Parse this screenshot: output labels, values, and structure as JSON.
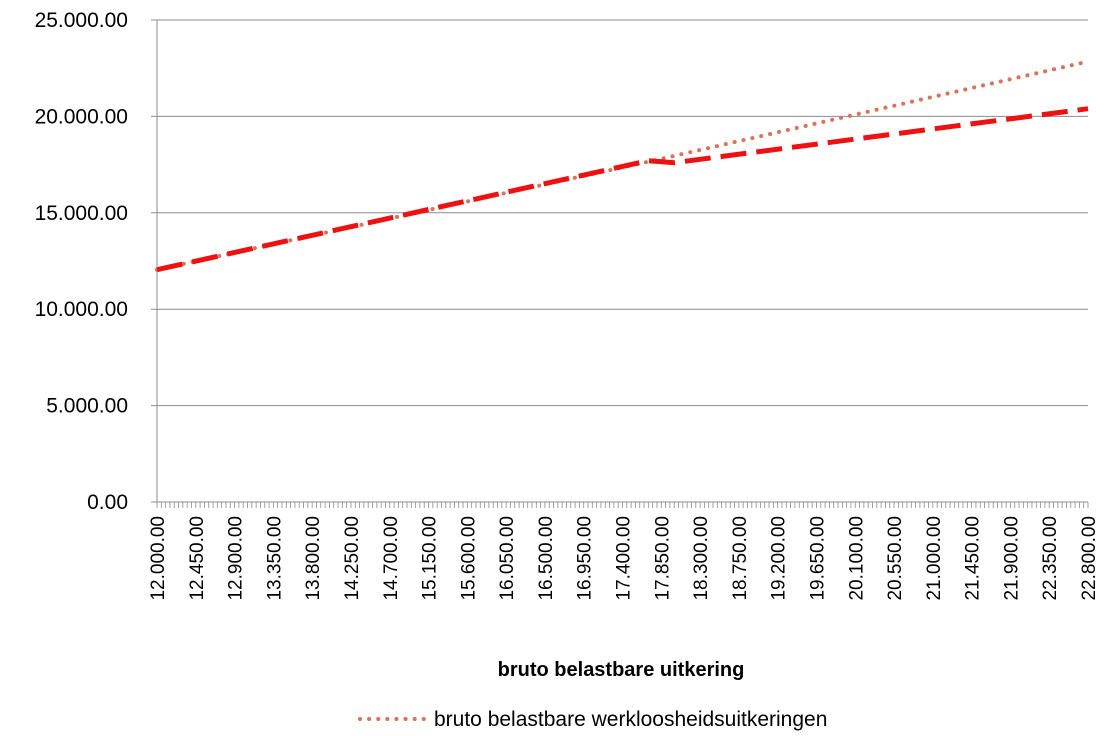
{
  "chart_data": {
    "type": "line",
    "title": "",
    "xlabel": "bruto belastbare uitkering",
    "ylabel": "",
    "x_start": 12000,
    "x_end": 22800,
    "x_step": 50,
    "ylim": [
      0,
      25000
    ],
    "grid": true,
    "legend_position": "bottom",
    "y_ticks": [
      "0.00",
      "5.000.00",
      "10.000.00",
      "15.000.00",
      "20.000.00",
      "25.000.00"
    ],
    "x_tick_labels": [
      "12.000.00",
      "12.450.00",
      "12.900.00",
      "13.350.00",
      "13.800.00",
      "14.250.00",
      "14.700.00",
      "15.150.00",
      "15.600.00",
      "16.050.00",
      "16.500.00",
      "16.950.00",
      "17.400.00",
      "17.850.00",
      "18.300.00",
      "18.750.00",
      "19.200.00",
      "19.650.00",
      "20.100.00",
      "20.550.00",
      "21.000.00",
      "21.450.00",
      "21.900.00",
      "22.350.00",
      "22.800.00"
    ],
    "series": [
      {
        "name": "bruto belastbare werkloosheidsuitkeringen",
        "style": "dotted",
        "color": "#D9735A",
        "points": [
          [
            12000,
            12050
          ],
          [
            17850,
            17800
          ],
          [
            22800,
            22850
          ]
        ]
      },
      {
        "name": "",
        "style": "dashed",
        "color": "#EE1111",
        "points": [
          [
            12000,
            12050
          ],
          [
            17700,
            17700
          ],
          [
            18000,
            17600
          ],
          [
            22800,
            20400
          ]
        ]
      }
    ]
  },
  "legend": {
    "entry": "bruto belastbare werkloosheidsuitkeringen"
  }
}
